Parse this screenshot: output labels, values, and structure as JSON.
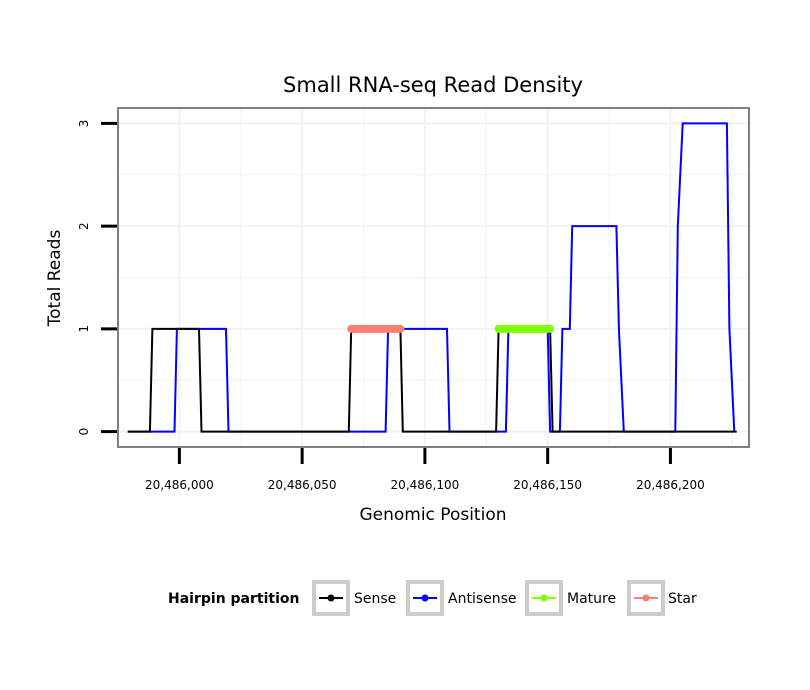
{
  "chart_data": {
    "type": "line",
    "title": "Small RNA-seq Read Density",
    "xlabel": "Genomic Position",
    "ylabel": "Total Reads",
    "xlim": [
      20485975,
      20486232
    ],
    "ylim": [
      -0.15,
      3.15
    ],
    "x_ticks": [
      20486000,
      20486050,
      20486100,
      20486150,
      20486200
    ],
    "x_tick_labels": [
      "20,486,000",
      "20,486,050",
      "20,486,100",
      "20,486,150",
      "20,486,200"
    ],
    "y_ticks": [
      0,
      1,
      2,
      3
    ],
    "y_tick_labels": [
      "0",
      "1",
      "2",
      "3"
    ],
    "grid": true,
    "legend": {
      "title": "Hairpin partition",
      "position": "bottom",
      "entries": [
        "Sense",
        "Antisense",
        "Mature",
        "Star"
      ]
    },
    "series": [
      {
        "name": "Sense",
        "color": "#000000",
        "points": [
          [
            20485979,
            0
          ],
          [
            20485988,
            0
          ],
          [
            20485989,
            1
          ],
          [
            20486008,
            1
          ],
          [
            20486009,
            0
          ],
          [
            20486069,
            0
          ],
          [
            20486070,
            1
          ],
          [
            20486090,
            1
          ],
          [
            20486091,
            0
          ],
          [
            20486129,
            0
          ],
          [
            20486130,
            1
          ],
          [
            20486151,
            1
          ],
          [
            20486152,
            0
          ],
          [
            20486227,
            0
          ]
        ]
      },
      {
        "name": "Antisense",
        "color": "#0000ff",
        "points": [
          [
            20485979,
            0
          ],
          [
            20485998,
            0
          ],
          [
            20485999,
            1
          ],
          [
            20486019,
            1
          ],
          [
            20486020,
            0
          ],
          [
            20486084,
            0
          ],
          [
            20486085,
            1
          ],
          [
            20486109,
            1
          ],
          [
            20486110,
            0
          ],
          [
            20486133,
            0
          ],
          [
            20486134,
            1
          ],
          [
            20486150,
            1
          ],
          [
            20486151,
            0
          ],
          [
            20486155,
            0
          ],
          [
            20486156,
            1
          ],
          [
            20486159,
            1
          ],
          [
            20486160,
            2
          ],
          [
            20486178,
            2
          ],
          [
            20486179,
            1
          ],
          [
            20486181,
            0
          ],
          [
            20486202,
            0
          ],
          [
            20486203,
            2
          ],
          [
            20486205,
            3
          ],
          [
            20486223,
            3
          ],
          [
            20486224,
            1
          ],
          [
            20486226,
            0
          ]
        ]
      },
      {
        "name": "Mature",
        "color": "#7fff00",
        "points": [
          [
            20486130,
            1
          ],
          [
            20486151,
            1
          ]
        ]
      },
      {
        "name": "Star",
        "color": "#fa8072",
        "points": [
          [
            20486070,
            1
          ],
          [
            20486090,
            1
          ]
        ]
      }
    ]
  }
}
